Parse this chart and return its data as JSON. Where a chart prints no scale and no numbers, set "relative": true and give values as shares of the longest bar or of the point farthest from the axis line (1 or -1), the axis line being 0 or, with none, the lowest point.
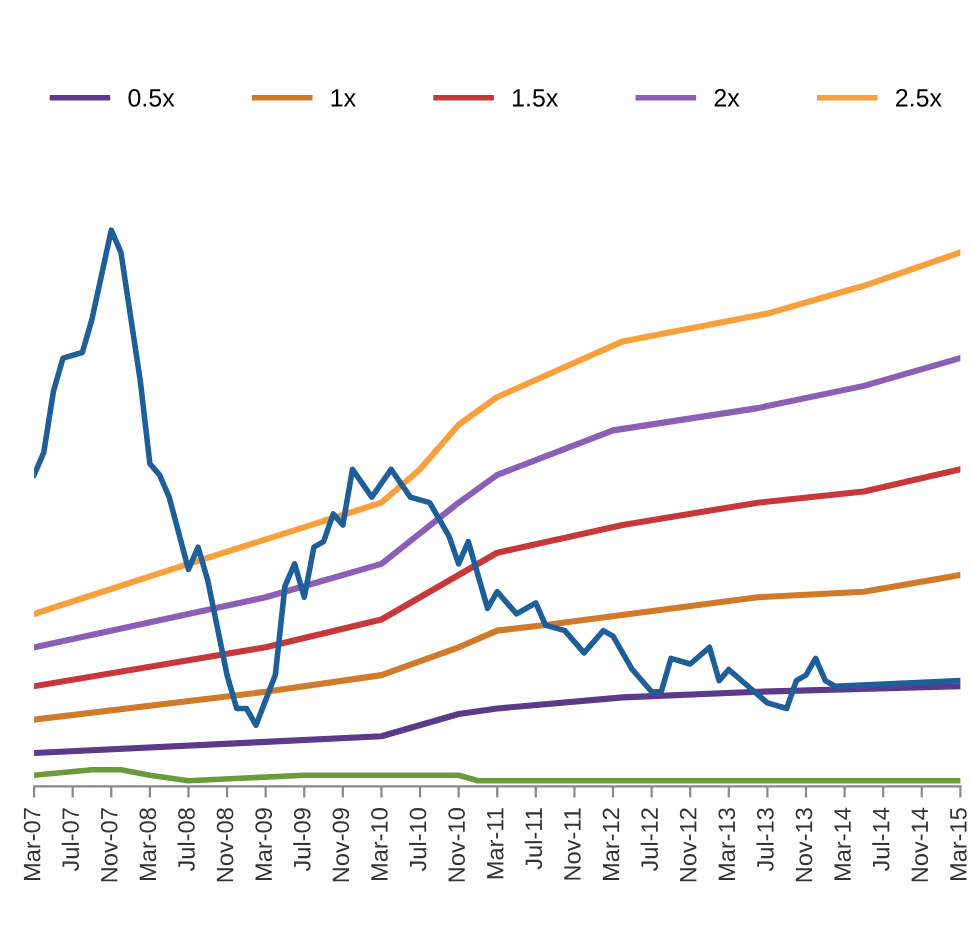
{
  "chart_data": {
    "type": "line",
    "relative": true,
    "legend": "top",
    "grid": false,
    "marker": "none",
    "line_style": "solid",
    "xlim": [
      "2007-03",
      "2015-03"
    ],
    "xticks": [
      {
        "value": "2007-03",
        "label": "Mar-07"
      },
      {
        "value": "2007-07",
        "label": "Jul-07"
      },
      {
        "value": "2007-11",
        "label": "Nov-07"
      },
      {
        "value": "2008-03",
        "label": "Mar-08"
      },
      {
        "value": "2008-07",
        "label": "Jul-08"
      },
      {
        "value": "2008-11",
        "label": "Nov-08"
      },
      {
        "value": "2009-03",
        "label": "Mar-09"
      },
      {
        "value": "2009-07",
        "label": "Jul-09"
      },
      {
        "value": "2009-11",
        "label": "Nov-09"
      },
      {
        "value": "2010-03",
        "label": "Mar-10"
      },
      {
        "value": "2010-07",
        "label": "Jul-10"
      },
      {
        "value": "2010-11",
        "label": "Nov-10"
      },
      {
        "value": "2011-03",
        "label": "Mar-11"
      },
      {
        "value": "2011-07",
        "label": "Jul-11"
      },
      {
        "value": "2011-11",
        "label": "Nov-11"
      },
      {
        "value": "2012-03",
        "label": "Mar-12"
      },
      {
        "value": "2012-07",
        "label": "Jul-12"
      },
      {
        "value": "2012-11",
        "label": "Nov-12"
      },
      {
        "value": "2013-03",
        "label": "Mar-13"
      },
      {
        "value": "2013-07",
        "label": "Jul-13"
      },
      {
        "value": "2013-11",
        "label": "Nov-13"
      },
      {
        "value": "2014-03",
        "label": "Mar-14"
      },
      {
        "value": "2014-07",
        "label": "Jul-14"
      },
      {
        "value": "2014-11",
        "label": "Nov-14"
      },
      {
        "value": "2015-03",
        "label": "Mar-15"
      }
    ],
    "series": [
      {
        "name": "0.5x",
        "color": "#5b3a8c",
        "x": [
          "2007-03",
          "2009-03",
          "2010-03",
          "2010-11",
          "2011-03",
          "2012-04",
          "2013-06",
          "2015-03"
        ],
        "values": [
          0.06,
          0.08,
          0.09,
          0.13,
          0.14,
          0.16,
          0.17,
          0.18
        ]
      },
      {
        "name": "1x",
        "color": "#d07a2a",
        "x": [
          "2007-03",
          "2009-03",
          "2010-03",
          "2010-11",
          "2011-03",
          "2011-08",
          "2013-06",
          "2014-05",
          "2015-03"
        ],
        "values": [
          0.12,
          0.17,
          0.2,
          0.25,
          0.28,
          0.29,
          0.34,
          0.35,
          0.38
        ]
      },
      {
        "name": "1.5x",
        "color": "#c8373a",
        "x": [
          "2007-03",
          "2009-03",
          "2010-03",
          "2010-11",
          "2011-03",
          "2012-04",
          "2013-06",
          "2014-05",
          "2015-03"
        ],
        "values": [
          0.18,
          0.25,
          0.3,
          0.38,
          0.42,
          0.47,
          0.51,
          0.53,
          0.57
        ]
      },
      {
        "name": "2x",
        "color": "#8a5fb5",
        "x": [
          "2007-03",
          "2009-03",
          "2010-03",
          "2010-11",
          "2011-03",
          "2012-03",
          "2013-06",
          "2014-05",
          "2015-03"
        ],
        "values": [
          0.25,
          0.34,
          0.4,
          0.51,
          0.56,
          0.64,
          0.68,
          0.72,
          0.77
        ]
      },
      {
        "name": "2.5x",
        "color": "#f7a03c",
        "x": [
          "2007-03",
          "2008-07",
          "2010-03",
          "2010-07",
          "2010-11",
          "2011-03",
          "2012-04",
          "2013-07",
          "2014-05",
          "2015-03"
        ],
        "values": [
          0.31,
          0.4,
          0.51,
          0.57,
          0.65,
          0.7,
          0.8,
          0.85,
          0.9,
          0.96
        ]
      },
      {
        "color": "#1f5f99",
        "x": [
          "2007-03",
          "2007-04",
          "2007-05",
          "2007-06",
          "2007-08",
          "2007-09",
          "2007-11",
          "2007-12",
          "2008-02",
          "2008-03",
          "2008-04",
          "2008-05",
          "2008-07",
          "2008-08",
          "2008-09",
          "2008-11",
          "2008-12",
          "2009-01",
          "2009-02",
          "2009-04",
          "2009-05",
          "2009-06",
          "2009-07",
          "2009-08",
          "2009-09",
          "2009-10",
          "2009-11",
          "2009-12",
          "2010-02",
          "2010-04",
          "2010-06",
          "2010-08",
          "2010-10",
          "2010-11",
          "2010-12",
          "2011-02",
          "2011-03",
          "2011-05",
          "2011-07",
          "2011-08",
          "2011-10",
          "2011-12",
          "2012-02",
          "2012-03",
          "2012-05",
          "2012-07",
          "2012-08",
          "2012-09",
          "2012-11",
          "2013-01",
          "2013-02",
          "2013-03",
          "2013-05",
          "2013-07",
          "2013-09",
          "2013-10",
          "2013-11",
          "2013-12",
          "2014-01",
          "2014-02",
          "2015-03"
        ],
        "values": [
          0.56,
          0.6,
          0.71,
          0.77,
          0.78,
          0.84,
          1.0,
          0.96,
          0.73,
          0.58,
          0.56,
          0.52,
          0.39,
          0.43,
          0.37,
          0.2,
          0.14,
          0.14,
          0.11,
          0.2,
          0.36,
          0.4,
          0.34,
          0.43,
          0.44,
          0.49,
          0.47,
          0.57,
          0.52,
          0.57,
          0.52,
          0.51,
          0.45,
          0.4,
          0.44,
          0.32,
          0.35,
          0.31,
          0.33,
          0.29,
          0.28,
          0.24,
          0.28,
          0.27,
          0.21,
          0.17,
          0.17,
          0.23,
          0.22,
          0.25,
          0.19,
          0.21,
          0.18,
          0.15,
          0.14,
          0.19,
          0.2,
          0.23,
          0.19,
          0.18,
          0.19
        ]
      },
      {
        "color": "#6a9a3a",
        "x": [
          "2007-03",
          "2007-09",
          "2007-12",
          "2008-03",
          "2008-07",
          "2009-07",
          "2010-11",
          "2011-01",
          "2015-03"
        ],
        "values": [
          0.02,
          0.03,
          0.03,
          0.02,
          0.01,
          0.02,
          0.02,
          0.01,
          0.01
        ]
      }
    ]
  }
}
